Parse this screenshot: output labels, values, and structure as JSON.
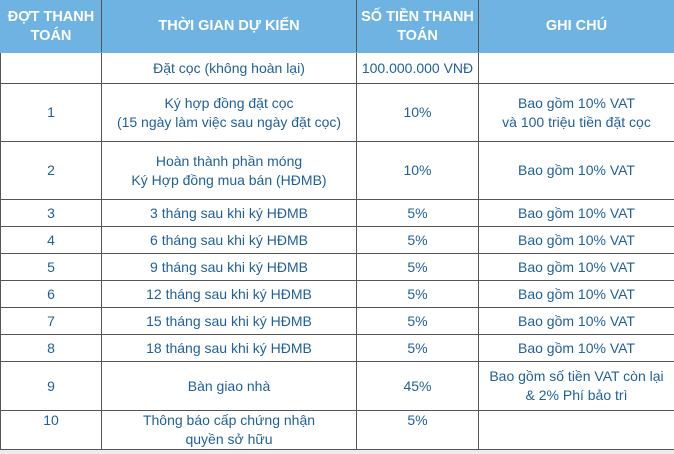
{
  "colors": {
    "header_bg": "#6fb3e3",
    "header_text": "#ffffff",
    "body_text": "#1f5f9a",
    "border": "#555555"
  },
  "headers": [
    "ĐỢT THANH TOÁN",
    "THỜI GIAN DỰ KIẾN",
    "SỐ TIỀN THANH TOÁN",
    "GHI CHÚ"
  ],
  "rows": [
    {
      "dot": "",
      "time": [
        "Đặt cọc (không hoàn lại)"
      ],
      "amount": "100.000.000 VNĐ",
      "note": []
    },
    {
      "dot": "1",
      "time": [
        "Ký hợp đồng đặt cọc",
        "(15 ngày làm việc sau ngày đặt cọc)"
      ],
      "amount": "10%",
      "note": [
        "Bao gồm 10% VAT",
        "và 100 triệu tiền đặt cọc"
      ]
    },
    {
      "dot": "2",
      "time": [
        "Hoàn thành phần móng",
        "Ký Hợp đồng mua bán (HĐMB)"
      ],
      "amount": "10%",
      "note": [
        "Bao gồm 10% VAT"
      ]
    },
    {
      "dot": "3",
      "time": [
        "3 tháng sau khi ký HĐMB"
      ],
      "amount": "5%",
      "note": [
        "Bao gồm 10% VAT"
      ]
    },
    {
      "dot": "4",
      "time": [
        "6 tháng sau khi ký HĐMB"
      ],
      "amount": "5%",
      "note": [
        "Bao gồm 10% VAT"
      ]
    },
    {
      "dot": "5",
      "time": [
        "9 tháng sau khi ký HĐMB"
      ],
      "amount": "5%",
      "note": [
        "Bao gồm 10% VAT"
      ]
    },
    {
      "dot": "6",
      "time": [
        "12 tháng sau khi ký HĐMB"
      ],
      "amount": "5%",
      "note": [
        "Bao gồm 10% VAT"
      ]
    },
    {
      "dot": "7",
      "time": [
        "15 tháng sau khi ký HĐMB"
      ],
      "amount": "5%",
      "note": [
        "Bao gồm 10% VAT"
      ]
    },
    {
      "dot": "8",
      "time": [
        "18 tháng sau khi ký HĐMB"
      ],
      "amount": "5%",
      "note": [
        "Bao gồm 10% VAT"
      ]
    },
    {
      "dot": "9",
      "time": [
        "Bàn giao nhà"
      ],
      "amount": "45%",
      "note": [
        "Bao gồm số tiền VAT còn lại",
        "& 2% Phí bảo trì"
      ]
    },
    {
      "dot": "10",
      "time": [
        "Thông báo cấp chứng nhận",
        "quyền sở hữu"
      ],
      "amount": "5%",
      "note": []
    }
  ]
}
